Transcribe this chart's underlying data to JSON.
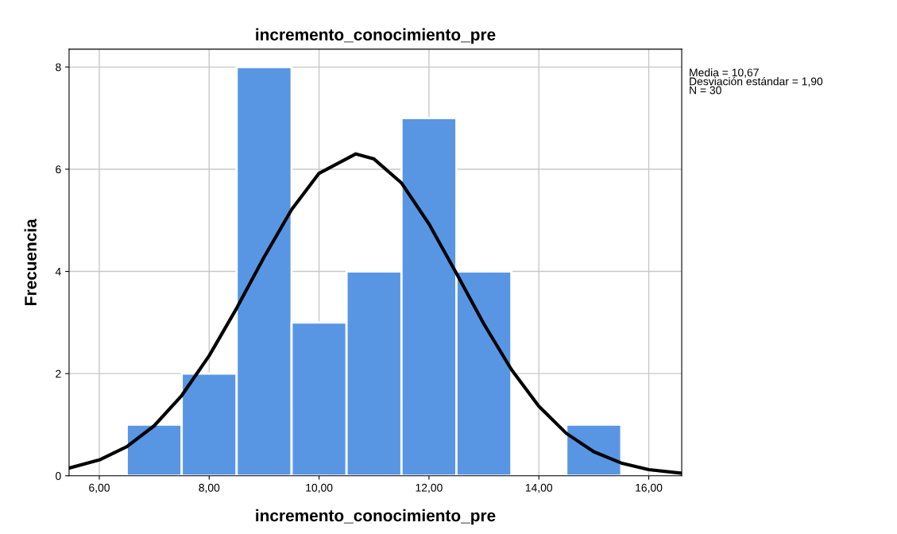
{
  "chart_data": {
    "type": "histogram",
    "title": "incremento_conocimiento_pre",
    "xlabel": "incremento_conocimiento_pre",
    "ylabel": "Frecuencia",
    "series": [
      {
        "color": "#5896e4",
        "bins": [
          6.5,
          7.5,
          8.5,
          9.5,
          10.5,
          11.5,
          12.5,
          13.5,
          14.5,
          15.5
        ],
        "values": [
          1,
          2,
          8,
          3,
          4,
          7,
          4,
          0,
          1
        ]
      },
      {
        "type": "line",
        "color": "#000000",
        "x": [
          5.45,
          6.0,
          6.5,
          7.0,
          7.5,
          8.0,
          8.5,
          9.0,
          9.5,
          10.0,
          10.67,
          11.0,
          11.5,
          12.0,
          12.5,
          13.0,
          13.5,
          14.0,
          14.5,
          15.0,
          15.5,
          16.0,
          16.6
        ],
        "values": [
          0.15,
          0.31,
          0.57,
          0.98,
          1.57,
          2.35,
          3.28,
          4.28,
          5.21,
          5.92,
          6.3,
          6.2,
          5.73,
          4.93,
          3.96,
          2.97,
          2.08,
          1.36,
          0.83,
          0.47,
          0.25,
          0.12,
          0.05
        ]
      }
    ],
    "xlim": [
      5.45,
      16.6
    ],
    "xticks": [
      {
        "value": 6,
        "label": "6,00"
      },
      {
        "value": 8,
        "label": "8,00"
      },
      {
        "value": 10,
        "label": "10,00"
      },
      {
        "value": 12,
        "label": "12,00"
      },
      {
        "value": 14,
        "label": "14,00"
      },
      {
        "value": 16,
        "label": "16,00"
      }
    ],
    "ylim": [
      0,
      8.35
    ],
    "yticks": [
      0,
      2,
      4,
      6,
      8
    ],
    "grid": true,
    "annotations": [
      "Media = 10,67",
      "Desviación estándar = 1,90",
      "N = 30"
    ]
  }
}
